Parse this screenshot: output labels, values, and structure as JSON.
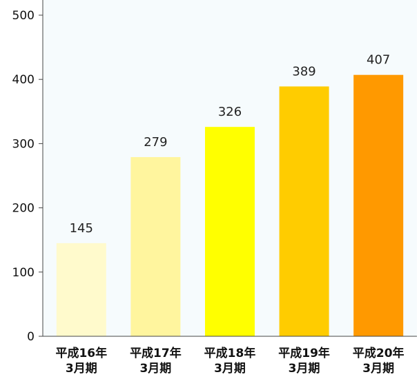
{
  "chart_data": {
    "type": "bar",
    "title": "",
    "xlabel": "",
    "ylabel": "",
    "ylim": [
      0,
      500
    ],
    "yticks": [
      0,
      100,
      200,
      300,
      400,
      500
    ],
    "grid": false,
    "legend": "none",
    "categories": [
      [
        "平成16年",
        "3月期"
      ],
      [
        "平成17年",
        "3月期"
      ],
      [
        "平成18年",
        "3月期"
      ],
      [
        "平成19年",
        "3月期"
      ],
      [
        "平成20年",
        "3月期"
      ]
    ],
    "values": [
      145,
      279,
      326,
      389,
      407
    ],
    "colors": [
      "#fffacc",
      "#fff59e",
      "#ffff00",
      "#ffcc00",
      "#ff9900"
    ],
    "plot_background": "#f6fbfd"
  }
}
